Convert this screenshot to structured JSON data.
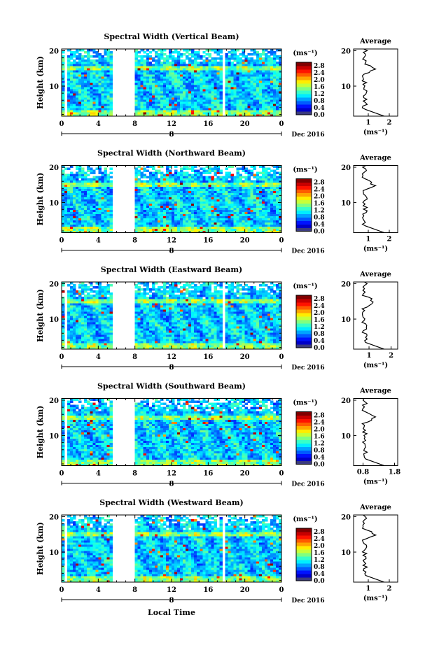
{
  "figure": {
    "xlabel": "Local Time",
    "date_label": "Dec 2016",
    "day_label": "8",
    "units_label": "(ms⁻¹)"
  },
  "chart_data": [
    {
      "type": "heatmap",
      "title": "Spectral Width (Vertical Beam)",
      "ylabel": "Height (km)",
      "xlabel": "Local Time",
      "x_ticks": [
        "0",
        "4",
        "8",
        "12",
        "16",
        "20",
        "0"
      ],
      "x_range": [
        0,
        24
      ],
      "y_ticks": [
        "20",
        "10"
      ],
      "y_range": [
        1.5,
        20.5
      ],
      "data_gaps_hours": [
        [
          0.3,
          0.6
        ],
        [
          5.6,
          8.0
        ],
        [
          17.5,
          17.8
        ]
      ],
      "colorbar": {
        "label": "(ms⁻¹)",
        "ticks": [
          "2.8",
          "2.4",
          "2.0",
          "1.6",
          "1.2",
          "0.8",
          "0.4",
          "0.0"
        ],
        "range": [
          0,
          3.0
        ]
      },
      "average": {
        "title": "Average",
        "xlabel": "(ms⁻¹)",
        "x_ticks": [
          "1",
          "2"
        ],
        "x_range": [
          0.3,
          2.4
        ]
      }
    },
    {
      "type": "heatmap",
      "title": "Spectral Width (Northward Beam)",
      "ylabel": "Height (km)",
      "xlabel": "Local Time",
      "x_ticks": [
        "0",
        "4",
        "8",
        "12",
        "16",
        "20",
        "0"
      ],
      "x_range": [
        0,
        24
      ],
      "y_ticks": [
        "20",
        "10"
      ],
      "y_range": [
        1.5,
        20.5
      ],
      "data_gaps_hours": [
        [
          5.6,
          8.0
        ]
      ],
      "colorbar": {
        "label": "(ms⁻¹)",
        "ticks": [
          "2.8",
          "2.4",
          "2.0",
          "1.6",
          "1.2",
          "0.8",
          "0.4",
          "0.0"
        ],
        "range": [
          0,
          3.0
        ]
      },
      "average": {
        "title": "Average",
        "xlabel": "(ms⁻¹)",
        "x_ticks": [
          "1",
          "2"
        ],
        "x_range": [
          0.3,
          2.4
        ]
      }
    },
    {
      "type": "heatmap",
      "title": "Spectral Width (Eastward Beam)",
      "ylabel": "Height (km)",
      "xlabel": "Local Time",
      "x_ticks": [
        "0",
        "4",
        "8",
        "12",
        "16",
        "20",
        "0"
      ],
      "x_range": [
        0,
        24
      ],
      "y_ticks": [
        "20",
        "10"
      ],
      "y_range": [
        1.5,
        20.5
      ],
      "data_gaps_hours": [
        [
          0.3,
          0.6
        ],
        [
          5.6,
          8.0
        ],
        [
          17.5,
          17.8
        ]
      ],
      "colorbar": {
        "label": "(ms⁻¹)",
        "ticks": [
          "2.8",
          "2.4",
          "2.0",
          "1.6",
          "1.2",
          "0.8",
          "0.4",
          "0.0"
        ],
        "range": [
          0,
          3.0
        ]
      },
      "average": {
        "title": "Average",
        "xlabel": "(ms⁻¹)",
        "x_ticks": [
          "1",
          "2"
        ],
        "x_range": [
          0.3,
          2.3
        ]
      }
    },
    {
      "type": "heatmap",
      "title": "Spectral Width (Southward Beam)",
      "ylabel": "Height (km)",
      "xlabel": "Local Time",
      "x_ticks": [
        "0",
        "4",
        "8",
        "12",
        "16",
        "20",
        "0"
      ],
      "x_range": [
        0,
        24
      ],
      "y_ticks": [
        "20",
        "10"
      ],
      "y_range": [
        1.5,
        20.5
      ],
      "data_gaps_hours": [
        [
          0.3,
          0.6
        ],
        [
          5.6,
          8.0
        ]
      ],
      "colorbar": {
        "label": "(ms⁻¹)",
        "ticks": [
          "2.8",
          "2.4",
          "2.0",
          "1.6",
          "1.2",
          "0.8",
          "0.4",
          "0.0"
        ],
        "range": [
          0,
          3.0
        ]
      },
      "average": {
        "title": "Average",
        "xlabel": "(ms⁻¹)",
        "x_ticks": [
          "0.8",
          "1.8"
        ],
        "x_range": [
          0.5,
          1.9
        ]
      }
    },
    {
      "type": "heatmap",
      "title": "Spectral Width (Westward Beam)",
      "ylabel": "Height (km)",
      "xlabel": "Local Time",
      "x_ticks": [
        "0",
        "4",
        "8",
        "12",
        "16",
        "20",
        "0"
      ],
      "x_range": [
        0,
        24
      ],
      "y_ticks": [
        "20",
        "10"
      ],
      "y_range": [
        1.5,
        20.5
      ],
      "data_gaps_hours": [
        [
          0.3,
          0.6
        ],
        [
          5.6,
          8.0
        ],
        [
          17.5,
          17.8
        ]
      ],
      "colorbar": {
        "label": "(ms⁻¹)",
        "ticks": [
          "2.8",
          "2.4",
          "2.0",
          "1.6",
          "1.2",
          "0.8",
          "0.4",
          "0.0"
        ],
        "range": [
          0,
          3.0
        ]
      },
      "average": {
        "title": "Average",
        "xlabel": "(ms⁻¹)",
        "x_ticks": [
          "1",
          "2"
        ],
        "x_range": [
          0.3,
          2.4
        ]
      }
    }
  ]
}
